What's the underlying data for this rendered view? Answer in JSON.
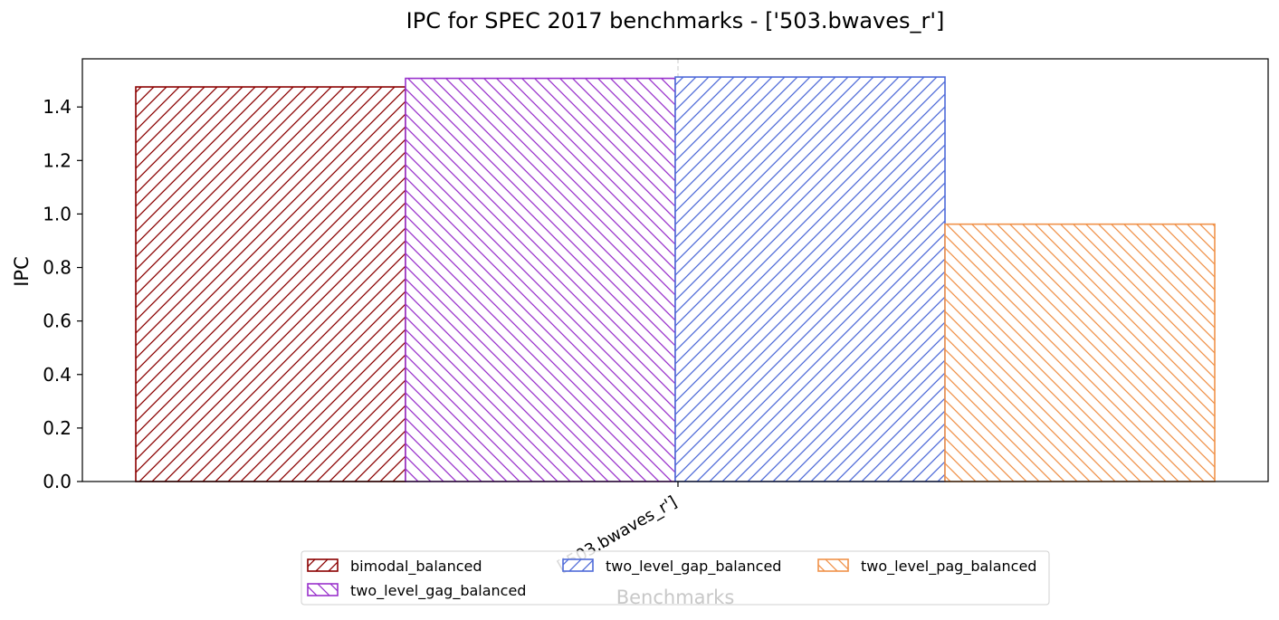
{
  "chart_data": {
    "type": "bar",
    "title": "IPC for SPEC 2017 benchmarks - ['503.bwaves_r']",
    "xlabel": "Benchmarks",
    "ylabel": "IPC",
    "categories": [
      "['503.bwaves_r']"
    ],
    "ylim": [
      0,
      1.58
    ],
    "yticks": [
      "0.0",
      "0.2",
      "0.4",
      "0.6",
      "0.8",
      "1.0",
      "1.2",
      "1.4"
    ],
    "grid": "x-only dashed",
    "legend_position": "bottom-center",
    "series": [
      {
        "name": "bimodal_balanced",
        "values": [
          1.475
        ],
        "color": "#8b0000",
        "hatch": "forward"
      },
      {
        "name": "two_level_gag_balanced",
        "values": [
          1.507
        ],
        "color": "#9932cc",
        "hatch": "back"
      },
      {
        "name": "two_level_gap_balanced",
        "values": [
          1.512
        ],
        "color": "#4f6bd8",
        "hatch": "forward"
      },
      {
        "name": "two_level_pag_balanced",
        "values": [
          0.962
        ],
        "color": "#f0924a",
        "hatch": "back"
      }
    ]
  }
}
